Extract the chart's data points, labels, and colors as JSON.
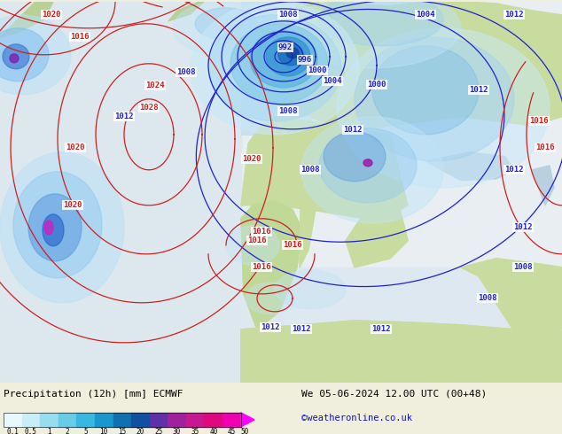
{
  "title_left": "Precipitation (12h) [mm] ECMWF",
  "title_right": "We 05-06-2024 12.00 UTC (00+48)",
  "credit": "©weatheronline.co.uk",
  "colorbar_labels": [
    "0.1",
    "0.5",
    "1",
    "2",
    "5",
    "10",
    "15",
    "20",
    "25",
    "30",
    "35",
    "40",
    "45",
    "50"
  ],
  "colorbar_colors": [
    "#e8f8ff",
    "#c8eef8",
    "#98dcf0",
    "#68cce8",
    "#38b8e0",
    "#1898cc",
    "#1070b0",
    "#1050a0",
    "#6030a8",
    "#a020a0",
    "#c81890",
    "#e00880",
    "#f000b0",
    "#ff00ff"
  ],
  "sea_color": "#d8eef8",
  "ocean_color": "#e0f0f8",
  "land_color_green": "#c8dca0",
  "land_color_light": "#d8e8b8",
  "coast_color": "#a0a0a0",
  "blue_contour": "#2020cc",
  "red_contour": "#cc2020",
  "fig_width": 6.34,
  "fig_height": 4.9,
  "dpi": 100
}
